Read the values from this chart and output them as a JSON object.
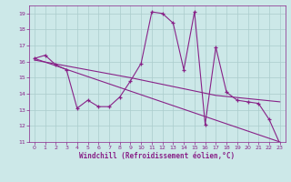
{
  "xlabel": "Windchill (Refroidissement éolien,°C)",
  "xlim": [
    -0.5,
    23.5
  ],
  "ylim": [
    11,
    19.5
  ],
  "yticks": [
    11,
    12,
    13,
    14,
    15,
    16,
    17,
    18,
    19
  ],
  "xticks": [
    0,
    1,
    2,
    3,
    4,
    5,
    6,
    7,
    8,
    9,
    10,
    11,
    12,
    13,
    14,
    15,
    16,
    17,
    18,
    19,
    20,
    21,
    22,
    23
  ],
  "background_color": "#cce8e8",
  "line_color": "#882288",
  "grid_color": "#aacccc",
  "line1_x": [
    0,
    1,
    2,
    3,
    4,
    5,
    6,
    7,
    8,
    9,
    10,
    11,
    12,
    13,
    14,
    15,
    16,
    17,
    18,
    19,
    20,
    21,
    22,
    23
  ],
  "line1_y": [
    16.2,
    16.4,
    15.8,
    15.5,
    13.1,
    13.6,
    13.2,
    13.2,
    13.8,
    14.8,
    15.9,
    19.1,
    19.0,
    18.4,
    15.5,
    19.1,
    12.1,
    16.9,
    14.1,
    13.6,
    13.5,
    13.4,
    12.4,
    10.9
  ],
  "line2_x": [
    0,
    23
  ],
  "line2_y": [
    16.2,
    11.0
  ],
  "line3_x": [
    0,
    9,
    17,
    23
  ],
  "line3_y": [
    16.1,
    15.0,
    13.9,
    13.5
  ]
}
